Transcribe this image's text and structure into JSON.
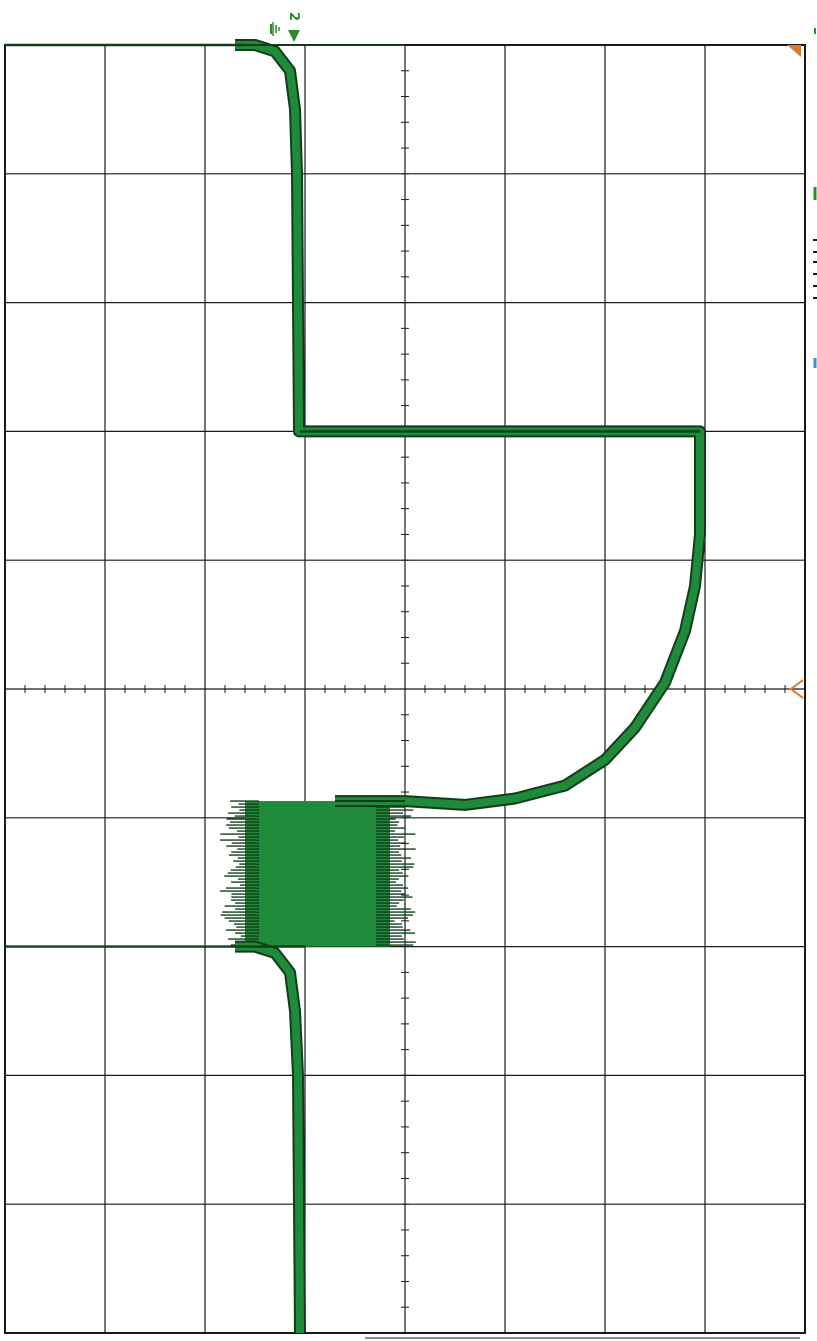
{
  "colors": {
    "trace": "#1f8a3a",
    "trace_edge": "#123d1a",
    "grid": "#1a1a1a",
    "channel_marker": "#2e8b2e",
    "trigger_marker": "#e07a2a",
    "side_tick": "#3a8fd0"
  },
  "scope": {
    "channel_label": "2",
    "ground_icon": "ground-icon",
    "trigger_icon": "trigger-arrow-icon"
  },
  "chart_data": {
    "type": "line",
    "title": "",
    "xlabel": "",
    "ylabel": "",
    "grid": true,
    "divisions": {
      "horizontal": 8,
      "vertical": 10
    },
    "xlim_div": [
      0,
      8
    ],
    "ylim_div": [
      0,
      10
    ],
    "series": [
      {
        "points_div": [
          [
            2.3,
            0.0
          ],
          [
            2.5,
            0.0
          ],
          [
            2.7,
            0.05
          ],
          [
            2.85,
            0.2
          ],
          [
            2.9,
            0.5
          ],
          [
            2.92,
            1.0
          ],
          [
            2.93,
            2.0
          ],
          [
            2.94,
            3.0
          ],
          [
            2.95,
            3.0
          ],
          [
            3.0,
            3.0
          ],
          [
            6.95,
            3.0
          ],
          [
            6.95,
            3.8
          ],
          [
            6.9,
            4.2
          ],
          [
            6.8,
            4.55
          ],
          [
            6.6,
            4.95
          ],
          [
            6.3,
            5.3
          ],
          [
            6.0,
            5.55
          ],
          [
            5.6,
            5.75
          ],
          [
            5.1,
            5.85
          ],
          [
            4.6,
            5.9
          ],
          [
            4.0,
            5.87
          ],
          [
            3.3,
            5.87
          ],
          [
            2.3,
            7.0
          ],
          [
            2.5,
            7.0
          ],
          [
            2.7,
            7.05
          ],
          [
            2.85,
            7.2
          ],
          [
            2.9,
            7.5
          ],
          [
            2.93,
            8.0
          ],
          [
            2.94,
            9.0
          ],
          [
            2.95,
            10.0
          ]
        ]
      }
    ],
    "noise_band_div": {
      "x_from": 2.3,
      "x_to": 3.95,
      "y_from": 5.87,
      "y_to": 7.0
    }
  }
}
